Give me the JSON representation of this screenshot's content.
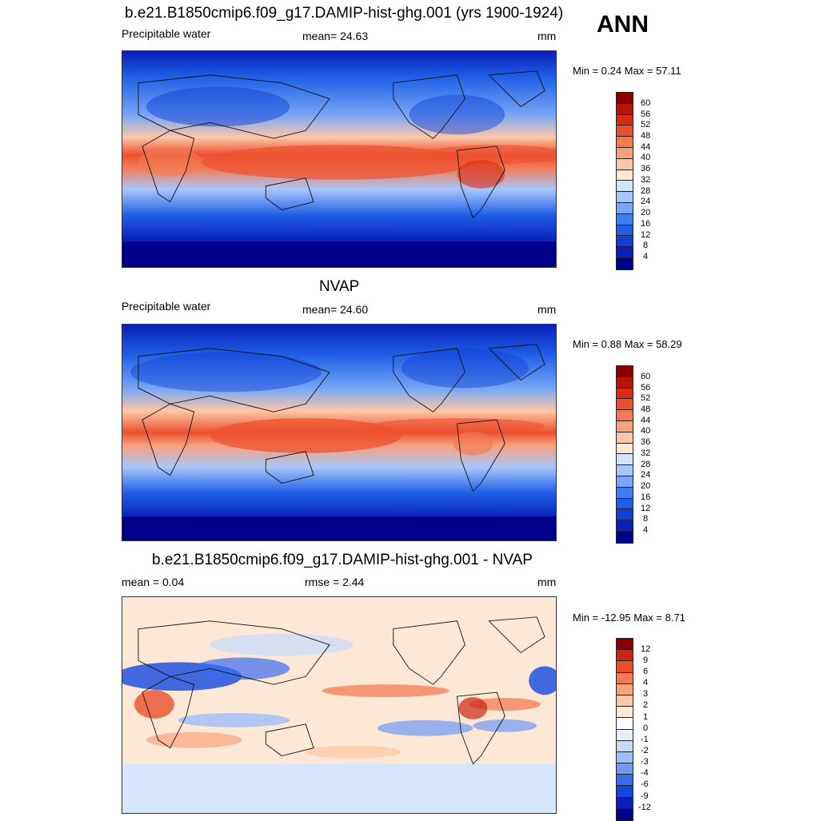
{
  "season": "ANN",
  "colors": {
    "abs_scale": [
      "#00008b",
      "#0a1fb8",
      "#0f3fd6",
      "#1f5fe6",
      "#3e7cf0",
      "#7aa7f5",
      "#a9c6fa",
      "#d3e4fd",
      "#fde8d6",
      "#fcc7a8",
      "#f9a07c",
      "#f47a52",
      "#ec512f",
      "#d92b14",
      "#b51406",
      "#8a0000"
    ],
    "diff_scale": [
      "#00008b",
      "#0a1fb8",
      "#1446e0",
      "#3a6cf0",
      "#6f99f5",
      "#9ebdf9",
      "#c7dafc",
      "#e4efff",
      "#fde8d6",
      "#fbc9a7",
      "#f8a47d",
      "#f27b53",
      "#e8502c",
      "#c9260f",
      "#8a0000"
    ]
  },
  "chart_data": [
    {
      "type": "heatmap",
      "title": "b.e21.B1850cmip6.f09_g17.DAMIP-hist-ghg.001 (yrs 1900-1924)",
      "left_label": "Precipitable water",
      "center_label": "mean=  24.63",
      "units": "mm",
      "minmax": "Min =   0.24 Max =  57.11",
      "min": 0.24,
      "max": 57.11,
      "mean": 24.63,
      "colorbar_levels": [
        "60",
        "56",
        "52",
        "48",
        "44",
        "40",
        "36",
        "32",
        "28",
        "24",
        "20",
        "16",
        "12",
        "8",
        "4"
      ]
    },
    {
      "type": "heatmap",
      "title": "NVAP",
      "left_label": "Precipitable water",
      "center_label": "mean=  24.60",
      "units": "mm",
      "minmax": "Min =   0.88 Max =  58.29",
      "min": 0.88,
      "max": 58.29,
      "mean": 24.6,
      "colorbar_levels": [
        "60",
        "56",
        "52",
        "48",
        "44",
        "40",
        "36",
        "32",
        "28",
        "24",
        "20",
        "16",
        "12",
        "8",
        "4"
      ]
    },
    {
      "type": "heatmap",
      "title": "b.e21.B1850cmip6.f09_g17.DAMIP-hist-ghg.001 - NVAP",
      "left_label": "mean =   0.04",
      "center_label": "rmse =   2.44",
      "units": "mm",
      "minmax": "Min = -12.95 Max =   8.71",
      "min": -12.95,
      "max": 8.71,
      "mean": 0.04,
      "rmse": 2.44,
      "colorbar_levels": [
        "12",
        "9",
        "6",
        "4",
        "3",
        "2",
        "1",
        "0",
        "-1",
        "-2",
        "-3",
        "-4",
        "-6",
        "-9",
        "-12"
      ]
    }
  ]
}
